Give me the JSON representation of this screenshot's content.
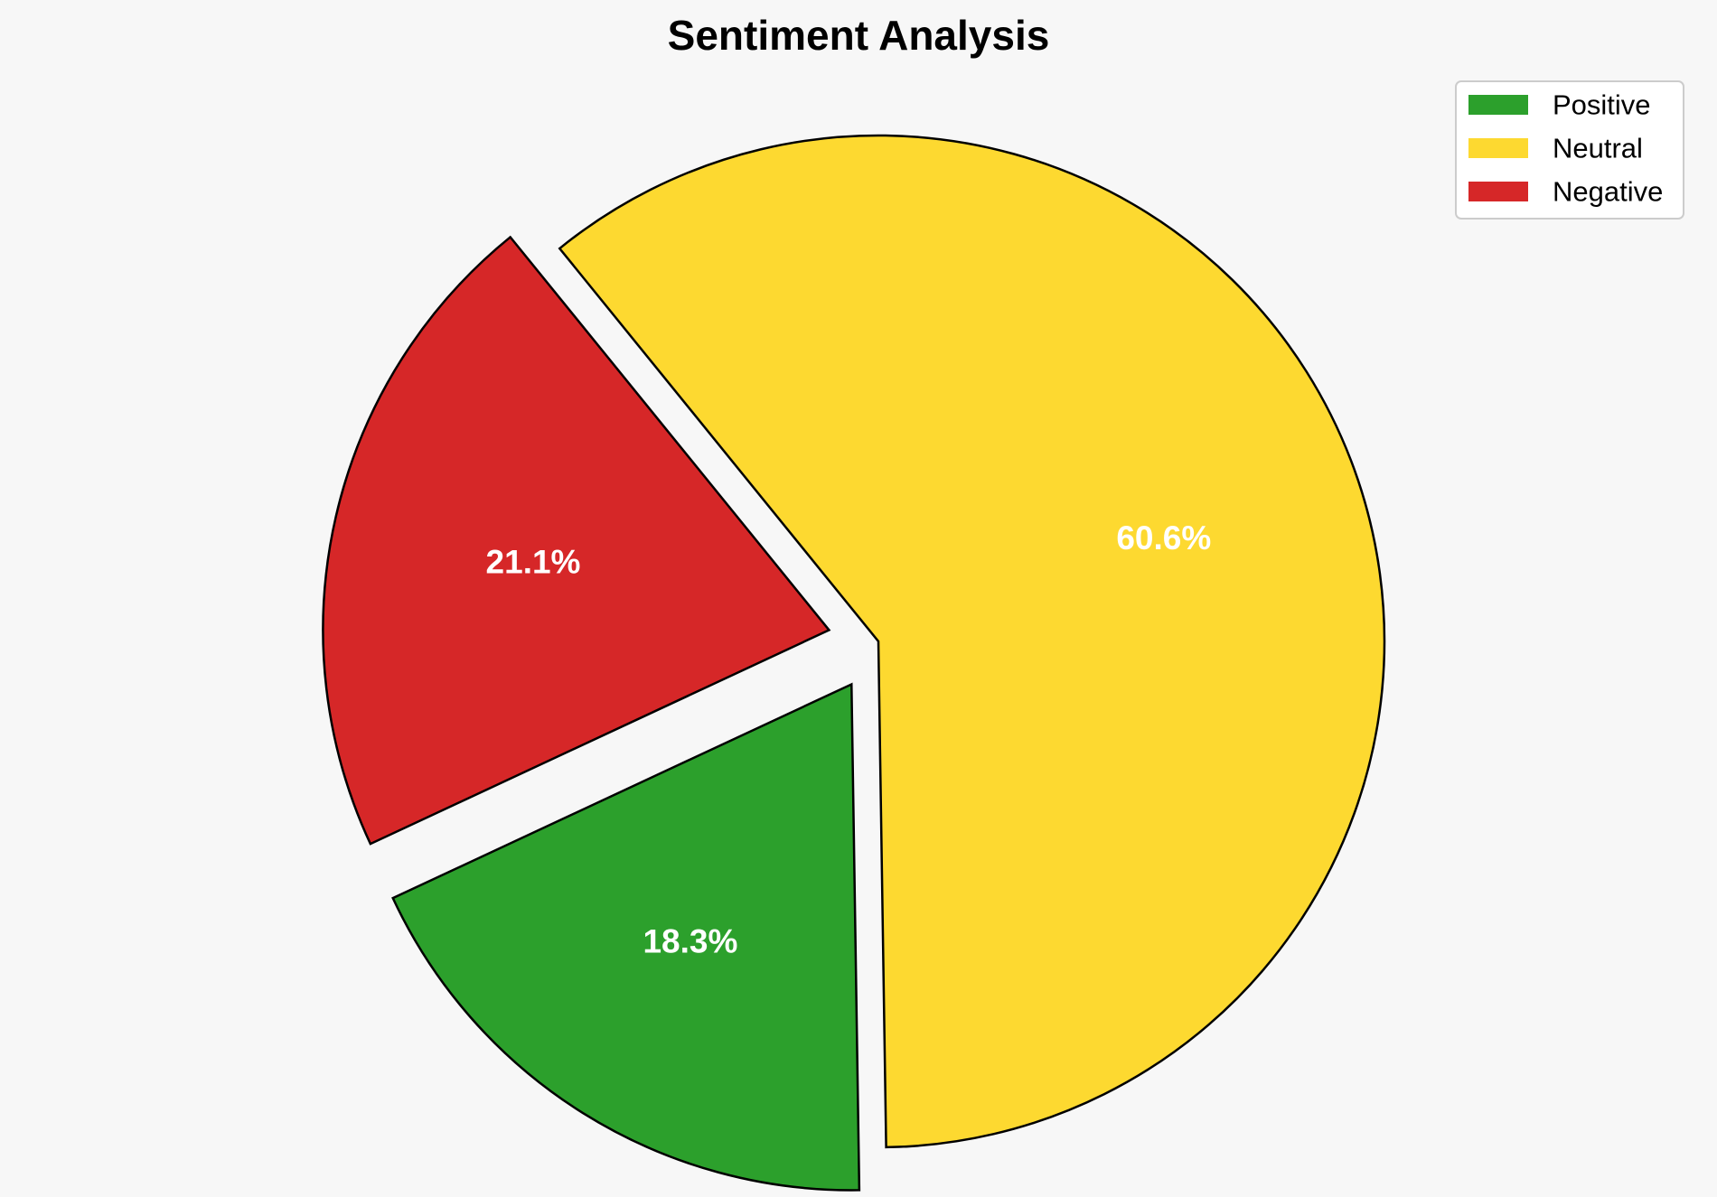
{
  "chart_data": {
    "type": "pie",
    "title": "Sentiment Analysis",
    "slices": [
      {
        "label": "Positive",
        "value": 18.3,
        "pct_label": "18.3%",
        "color": "#2ca02c",
        "exploded": true
      },
      {
        "label": "Neutral",
        "value": 60.6,
        "pct_label": "60.6%",
        "color": "#fdd930",
        "exploded": false
      },
      {
        "label": "Negative",
        "value": 21.1,
        "pct_label": "21.1%",
        "color": "#d62728",
        "exploded": true
      }
    ],
    "start_angle_deg": 205,
    "direction": "counterclockwise",
    "edge_color": "#000000",
    "label_color": "#ffffff",
    "legend": {
      "placement": "top-right",
      "entries": [
        "Positive",
        "Neutral",
        "Negative"
      ]
    }
  },
  "colors": {
    "background": "#f7f7f7"
  }
}
